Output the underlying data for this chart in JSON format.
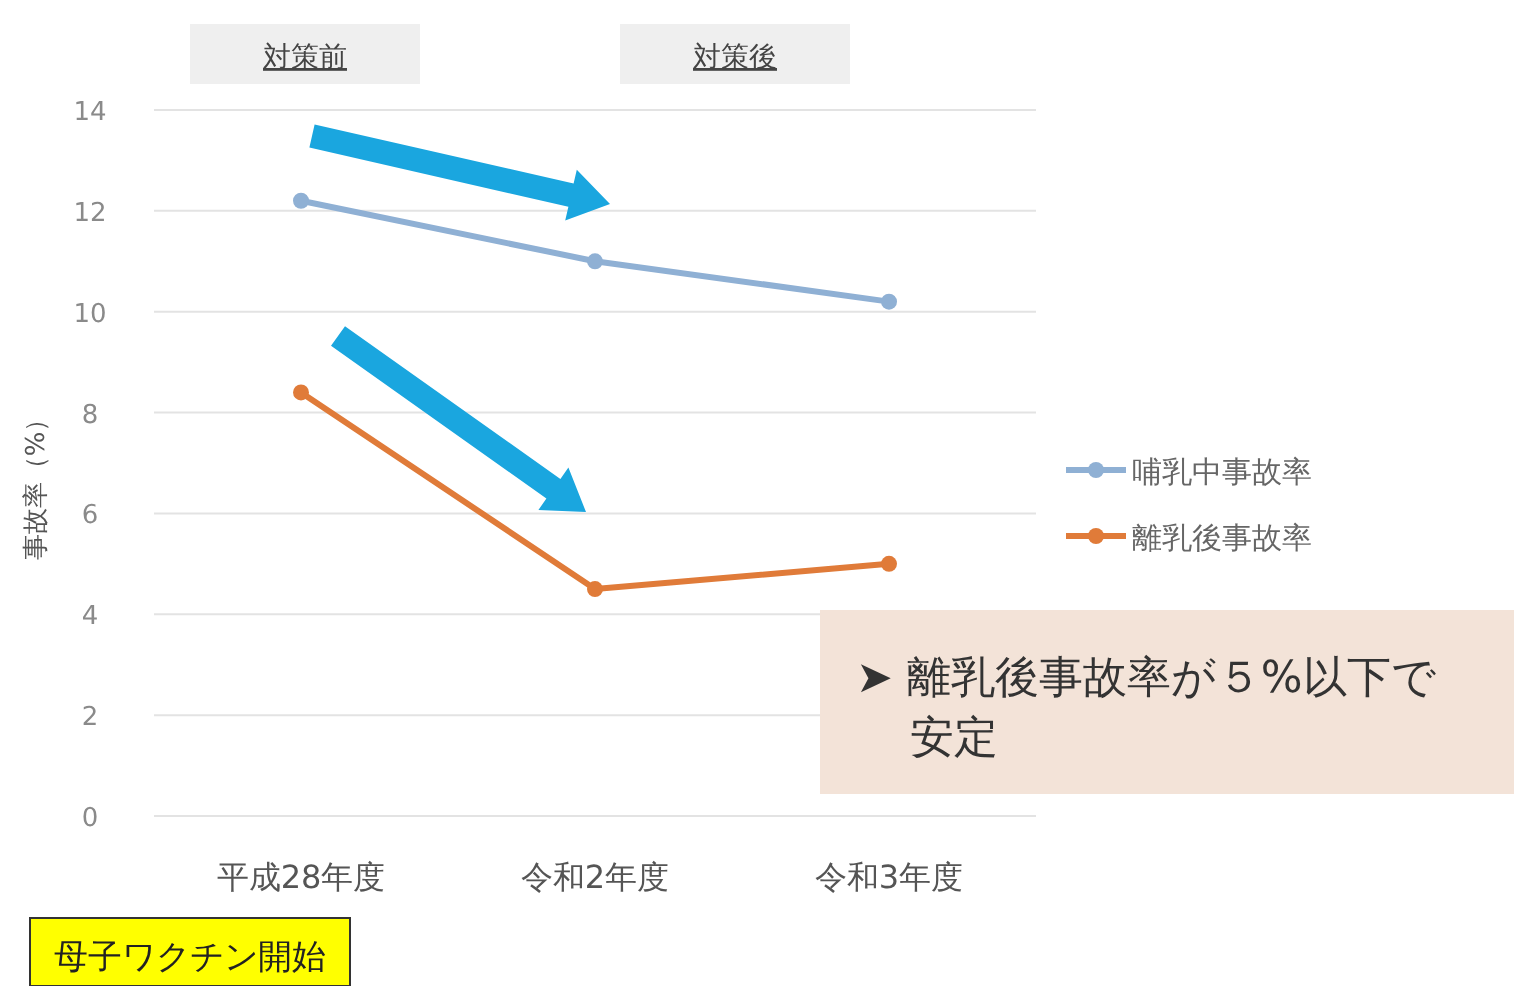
{
  "chart_data": {
    "type": "line",
    "ylabel": "事故率（%）",
    "categories": [
      "平成28年度",
      "令和2年度",
      "令和3年度"
    ],
    "series": [
      {
        "name": "哺乳中事故率",
        "color": "#8fb0d4",
        "values": [
          12.2,
          11.0,
          10.2
        ]
      },
      {
        "name": "離乳後事故率",
        "color": "#e07b39",
        "values": [
          8.4,
          4.5,
          5.0
        ]
      }
    ],
    "ylim": [
      0,
      14
    ],
    "yticks": [
      0,
      2,
      4,
      6,
      8,
      10,
      12,
      14
    ],
    "grid": "y",
    "legend": "right",
    "marker": "circle",
    "line_style": "solid",
    "annotations": [
      "対策前",
      "対策後",
      "➤ 離乳後事故率が５%以下で安定",
      "母子ワクチン開始"
    ]
  }
}
